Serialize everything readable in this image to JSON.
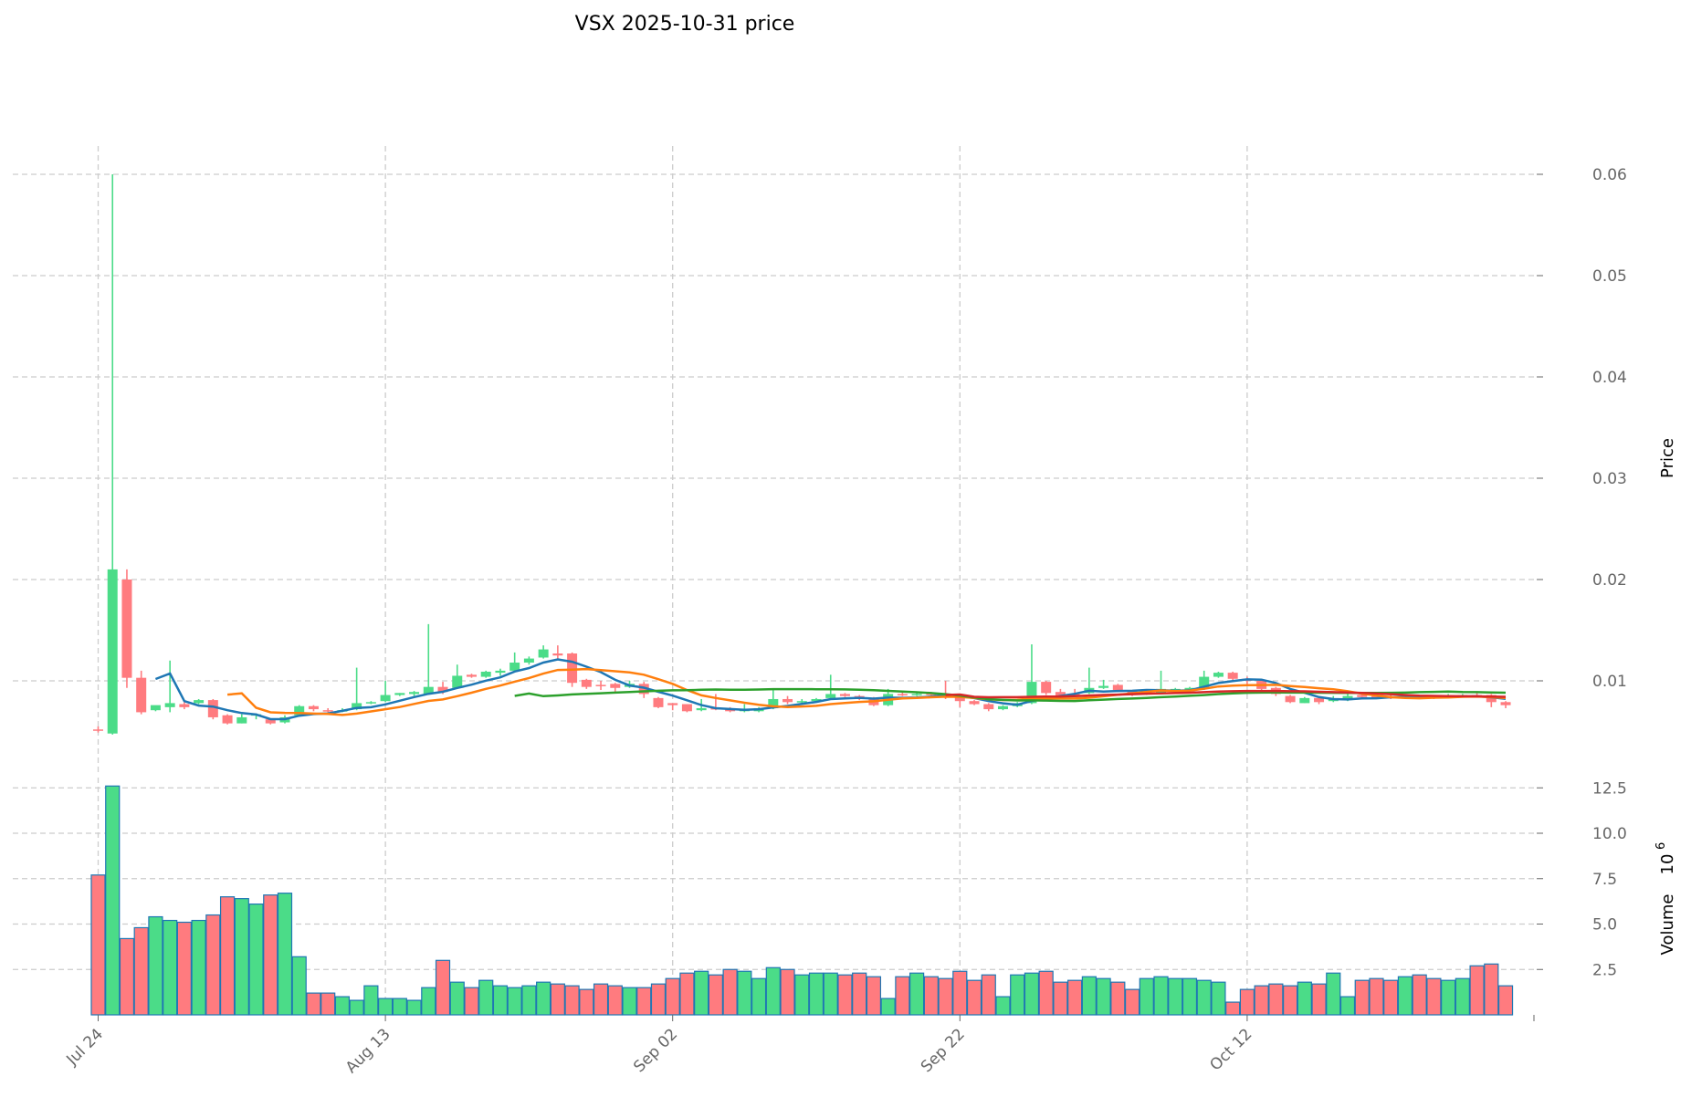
{
  "chart_data": {
    "type": "candlestick",
    "title": "VSX  2025-10-31  price",
    "ylabel": "Price",
    "volume_label": "Volume",
    "volume_exponent_label": "10",
    "volume_exponent": "6",
    "start_date": "2025-07-24",
    "x_tick_labels": [
      "Jul 24",
      "Aug 13",
      "Sep 02",
      "Sep 22",
      "Oct 12"
    ],
    "x_tick_day_offsets": [
      0,
      20,
      40,
      60,
      80
    ],
    "price_ticks": [
      "0.01",
      "0.02",
      "0.03",
      "0.04",
      "0.05",
      "0.06"
    ],
    "price_ylim": [
      0,
      0.063
    ],
    "volume_ticks": [
      "2.5",
      "5.0",
      "7.5",
      "10.0",
      "12.5"
    ],
    "volume_ylim": [
      0,
      13.0
    ],
    "moving_average_periods": [
      5,
      10,
      30,
      60
    ],
    "colors": {
      "up": "#4bdc88",
      "down": "#ff7b7f",
      "volume_edge": "#1f77b4",
      "ma": [
        "#1f77b4",
        "#ff7f0e",
        "#2ca02c",
        "#d62728"
      ],
      "grid": "#cccccc"
    },
    "ohlc": [
      [
        0.0052,
        0.0055,
        0.0049,
        0.0051
      ],
      [
        0.0048,
        0.06,
        0.0047,
        0.021
      ],
      [
        0.02,
        0.021,
        0.0093,
        0.0103
      ],
      [
        0.0103,
        0.011,
        0.0067,
        0.0069
      ],
      [
        0.0071,
        0.0073,
        0.007,
        0.0076
      ],
      [
        0.0074,
        0.012,
        0.0069,
        0.0078
      ],
      [
        0.0077,
        0.0079,
        0.0072,
        0.0074
      ],
      [
        0.0078,
        0.0082,
        0.0077,
        0.0081
      ],
      [
        0.0081,
        0.0082,
        0.0062,
        0.0064
      ],
      [
        0.0066,
        0.0067,
        0.0057,
        0.0058
      ],
      [
        0.0058,
        0.0067,
        0.0058,
        0.0064
      ],
      [
        0.0066,
        0.0068,
        0.0062,
        0.0067
      ],
      [
        0.0062,
        0.0063,
        0.0057,
        0.0058
      ],
      [
        0.0059,
        0.0066,
        0.0058,
        0.0064
      ],
      [
        0.0066,
        0.0076,
        0.0066,
        0.0075
      ],
      [
        0.0075,
        0.0076,
        0.007,
        0.0072
      ],
      [
        0.0071,
        0.0073,
        0.0069,
        0.007
      ],
      [
        0.007,
        0.0073,
        0.0069,
        0.0071
      ],
      [
        0.0072,
        0.0113,
        0.0071,
        0.0078
      ],
      [
        0.0078,
        0.008,
        0.0077,
        0.0079
      ],
      [
        0.008,
        0.01,
        0.0079,
        0.0086
      ],
      [
        0.0086,
        0.0088,
        0.0085,
        0.0088
      ],
      [
        0.0087,
        0.009,
        0.0085,
        0.0089
      ],
      [
        0.0087,
        0.0156,
        0.0086,
        0.0094
      ],
      [
        0.0094,
        0.0099,
        0.0087,
        0.0089
      ],
      [
        0.0093,
        0.0116,
        0.0092,
        0.0105
      ],
      [
        0.0106,
        0.0107,
        0.0103,
        0.0104
      ],
      [
        0.0104,
        0.011,
        0.0103,
        0.0109
      ],
      [
        0.0108,
        0.0112,
        0.0105,
        0.011
      ],
      [
        0.011,
        0.0128,
        0.0109,
        0.0118
      ],
      [
        0.0118,
        0.0124,
        0.0116,
        0.0122
      ],
      [
        0.0123,
        0.0135,
        0.0122,
        0.0131
      ],
      [
        0.0127,
        0.0135,
        0.0121,
        0.0125
      ],
      [
        0.0127,
        0.0128,
        0.0094,
        0.0098
      ],
      [
        0.0101,
        0.0102,
        0.0092,
        0.0094
      ],
      [
        0.0096,
        0.01,
        0.0091,
        0.0095
      ],
      [
        0.0097,
        0.0098,
        0.0089,
        0.0093
      ],
      [
        0.0094,
        0.01,
        0.0093,
        0.0097
      ],
      [
        0.0097,
        0.0099,
        0.0083,
        0.0087
      ],
      [
        0.0083,
        0.0084,
        0.0073,
        0.0074
      ],
      [
        0.0078,
        0.0078,
        0.0071,
        0.0076
      ],
      [
        0.0077,
        0.0077,
        0.0069,
        0.007
      ],
      [
        0.0071,
        0.0082,
        0.007,
        0.0073
      ],
      [
        0.0073,
        0.0087,
        0.0071,
        0.0072
      ],
      [
        0.0072,
        0.0074,
        0.0069,
        0.007
      ],
      [
        0.007,
        0.0077,
        0.0069,
        0.0072
      ],
      [
        0.007,
        0.0074,
        0.0069,
        0.0073
      ],
      [
        0.0073,
        0.0092,
        0.0072,
        0.0082
      ],
      [
        0.0082,
        0.0085,
        0.0077,
        0.0079
      ],
      [
        0.0079,
        0.0082,
        0.0078,
        0.008
      ],
      [
        0.008,
        0.0083,
        0.0079,
        0.0082
      ],
      [
        0.0083,
        0.0106,
        0.0082,
        0.0087
      ],
      [
        0.0087,
        0.0088,
        0.0084,
        0.0085
      ],
      [
        0.0085,
        0.0086,
        0.0081,
        0.0082
      ],
      [
        0.0083,
        0.0084,
        0.0075,
        0.0076
      ],
      [
        0.0076,
        0.0092,
        0.0075,
        0.0087
      ],
      [
        0.0087,
        0.0089,
        0.0085,
        0.0086
      ],
      [
        0.0086,
        0.0088,
        0.0085,
        0.0087
      ],
      [
        0.0088,
        0.0089,
        0.0083,
        0.0086
      ],
      [
        0.0087,
        0.01,
        0.0082,
        0.0085
      ],
      [
        0.0084,
        0.0085,
        0.0074,
        0.008
      ],
      [
        0.008,
        0.0081,
        0.0076,
        0.0077
      ],
      [
        0.0077,
        0.0078,
        0.007,
        0.0072
      ],
      [
        0.0072,
        0.0076,
        0.0071,
        0.0075
      ],
      [
        0.0075,
        0.0079,
        0.0074,
        0.0078
      ],
      [
        0.0078,
        0.0136,
        0.0077,
        0.0099
      ],
      [
        0.0099,
        0.01,
        0.0086,
        0.0088
      ],
      [
        0.0089,
        0.0092,
        0.0084,
        0.0085
      ],
      [
        0.0087,
        0.0092,
        0.0085,
        0.0086
      ],
      [
        0.0088,
        0.0113,
        0.0087,
        0.0093
      ],
      [
        0.0093,
        0.0101,
        0.0092,
        0.0095
      ],
      [
        0.0096,
        0.0097,
        0.0089,
        0.0091
      ],
      [
        0.009,
        0.0091,
        0.0085,
        0.0086
      ],
      [
        0.0087,
        0.0091,
        0.0086,
        0.009
      ],
      [
        0.0088,
        0.011,
        0.0087,
        0.0092
      ],
      [
        0.009,
        0.0093,
        0.0089,
        0.0092
      ],
      [
        0.009,
        0.0094,
        0.0089,
        0.0093
      ],
      [
        0.0092,
        0.011,
        0.0091,
        0.0104
      ],
      [
        0.0104,
        0.0109,
        0.0103,
        0.0108
      ],
      [
        0.0108,
        0.0109,
        0.01,
        0.0102
      ],
      [
        0.0102,
        0.0104,
        0.0096,
        0.01
      ],
      [
        0.01,
        0.0102,
        0.009,
        0.0092
      ],
      [
        0.0093,
        0.0094,
        0.0085,
        0.0087
      ],
      [
        0.0085,
        0.0086,
        0.0078,
        0.0079
      ],
      [
        0.0078,
        0.0084,
        0.0078,
        0.0083
      ],
      [
        0.0083,
        0.0084,
        0.0077,
        0.0079
      ],
      [
        0.008,
        0.0085,
        0.0079,
        0.0082
      ],
      [
        0.0081,
        0.0087,
        0.008,
        0.0085
      ],
      [
        0.0086,
        0.0087,
        0.0083,
        0.0084
      ],
      [
        0.0085,
        0.0086,
        0.0082,
        0.0084
      ],
      [
        0.0085,
        0.0086,
        0.0082,
        0.0084
      ],
      [
        0.0083,
        0.0086,
        0.0082,
        0.0084
      ],
      [
        0.0085,
        0.0086,
        0.0083,
        0.0084
      ],
      [
        0.0085,
        0.0086,
        0.0082,
        0.0084
      ],
      [
        0.0084,
        0.0087,
        0.0083,
        0.0085
      ],
      [
        0.0085,
        0.0087,
        0.0084,
        0.0086
      ],
      [
        0.0086,
        0.0088,
        0.0084,
        0.0085
      ],
      [
        0.0086,
        0.0087,
        0.0074,
        0.0079
      ],
      [
        0.0079,
        0.008,
        0.0073,
        0.0076
      ]
    ],
    "volume_millions": [
      7.7,
      12.6,
      4.2,
      4.8,
      5.4,
      5.2,
      5.1,
      5.2,
      5.5,
      6.5,
      6.4,
      6.1,
      6.6,
      6.7,
      3.2,
      1.2,
      1.2,
      1.0,
      0.8,
      1.6,
      0.9,
      0.9,
      0.8,
      1.5,
      3.0,
      1.8,
      1.5,
      1.9,
      1.6,
      1.5,
      1.6,
      1.8,
      1.7,
      1.6,
      1.4,
      1.7,
      1.6,
      1.5,
      1.5,
      1.7,
      2.0,
      2.3,
      2.4,
      2.2,
      2.5,
      2.4,
      2.0,
      2.6,
      2.5,
      2.2,
      2.3,
      2.3,
      2.2,
      2.3,
      2.1,
      0.9,
      2.1,
      2.3,
      2.1,
      2.0,
      2.4,
      1.9,
      2.2,
      1.0,
      2.2,
      2.3,
      2.4,
      1.8,
      1.9,
      2.1,
      2.0,
      1.8,
      1.4,
      2.0,
      2.1,
      2.0,
      2.0,
      1.9,
      1.8,
      0.7,
      1.4,
      1.6,
      1.7,
      1.6,
      1.8,
      1.7,
      2.3,
      1.0,
      1.9,
      2.0,
      1.9,
      2.1,
      2.2,
      2.0,
      1.9,
      2.0,
      2.7,
      2.8,
      1.6
    ]
  }
}
